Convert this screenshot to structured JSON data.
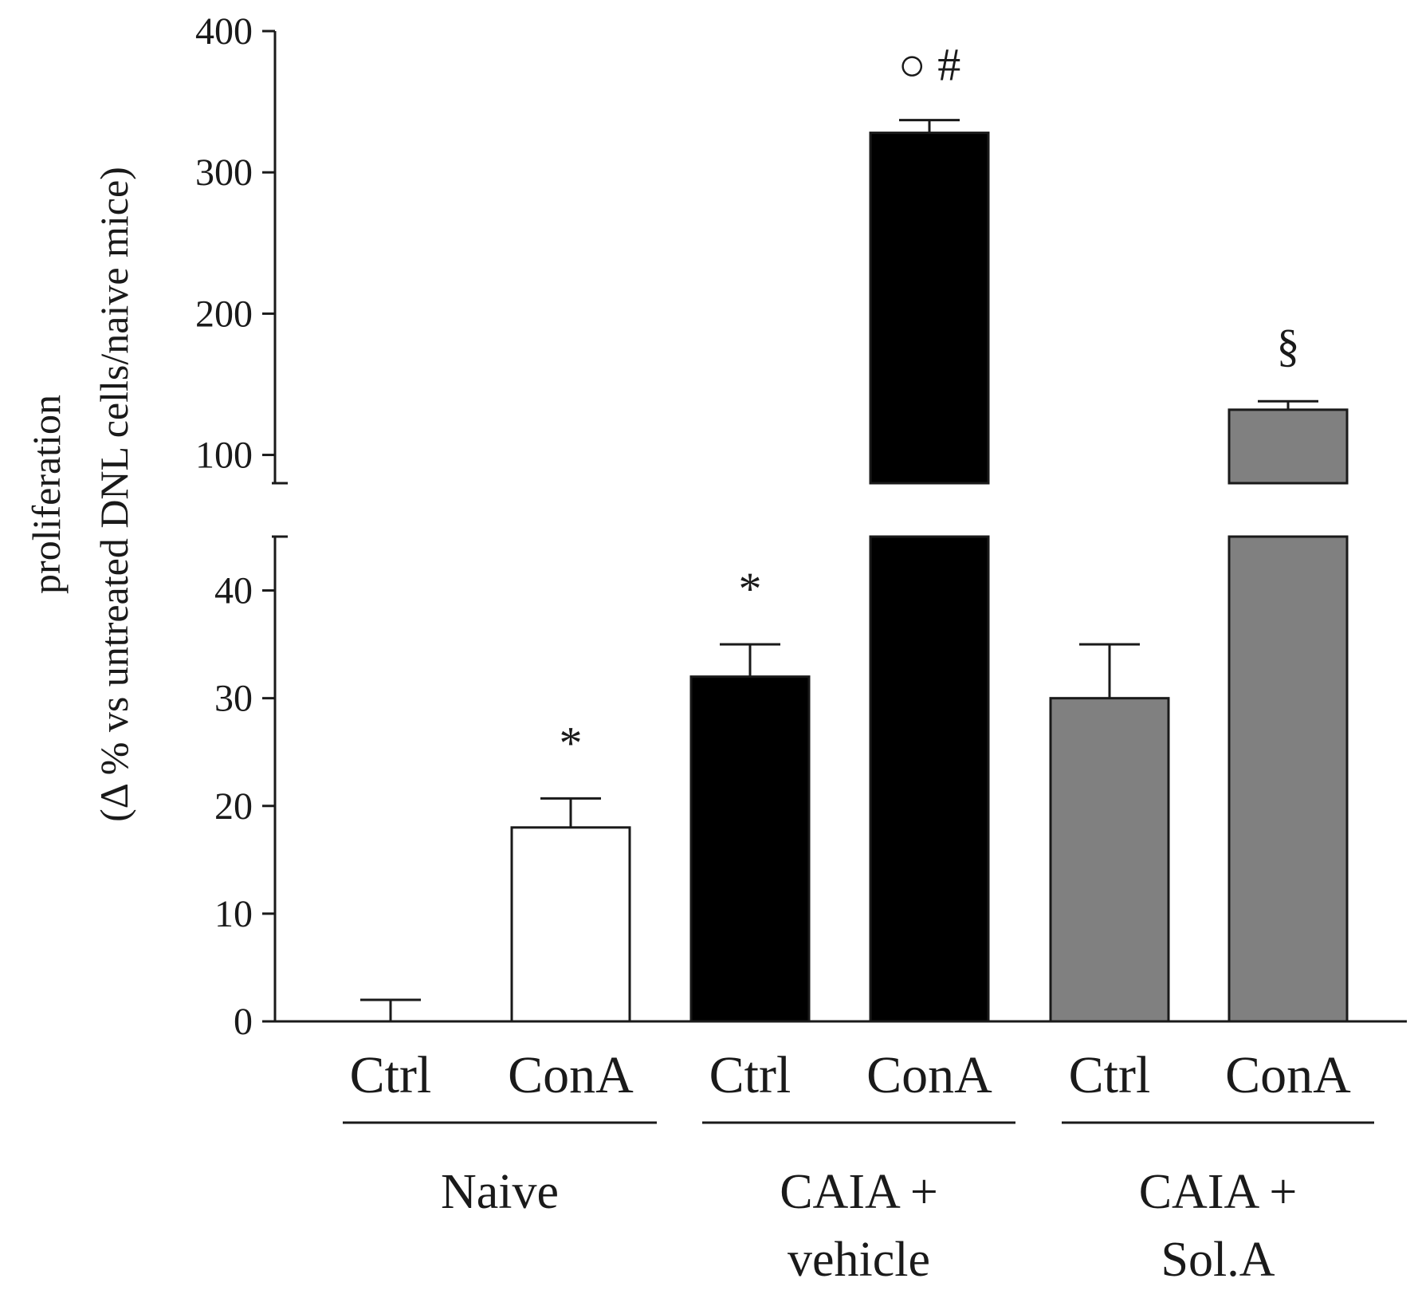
{
  "chart_data": {
    "type": "bar",
    "title": "",
    "ylabel_line1": "proliferation",
    "ylabel_line2": "(Δ % vs untreated DNL cells/naive mice)",
    "xlabel": "",
    "axis_break": {
      "lower_range": [
        0,
        45
      ],
      "upper_range": [
        80,
        400
      ]
    },
    "y_ticks_lower": [
      0,
      10,
      20,
      30,
      40
    ],
    "y_ticks_upper": [
      100,
      200,
      300,
      400
    ],
    "categories": [
      "Ctrl",
      "ConA",
      "Ctrl",
      "ConA",
      "Ctrl",
      "ConA"
    ],
    "values": [
      0,
      18,
      32,
      328,
      30,
      132
    ],
    "errors": [
      2,
      2.7,
      3,
      9,
      5,
      6
    ],
    "bar_colors": [
      "#ffffff",
      "#ffffff",
      "#000000",
      "#000000",
      "#808080",
      "#808080"
    ],
    "annotations": [
      "",
      "*",
      "*",
      "○ #",
      "",
      "§"
    ],
    "groups": [
      {
        "label_line1": "Naive",
        "label_line2": "",
        "start": 0,
        "end": 1
      },
      {
        "label_line1": "CAIA +",
        "label_line2": "vehicle",
        "start": 2,
        "end": 3
      },
      {
        "label_line1": "CAIA +",
        "label_line2": "Sol.A",
        "start": 4,
        "end": 5
      }
    ]
  }
}
